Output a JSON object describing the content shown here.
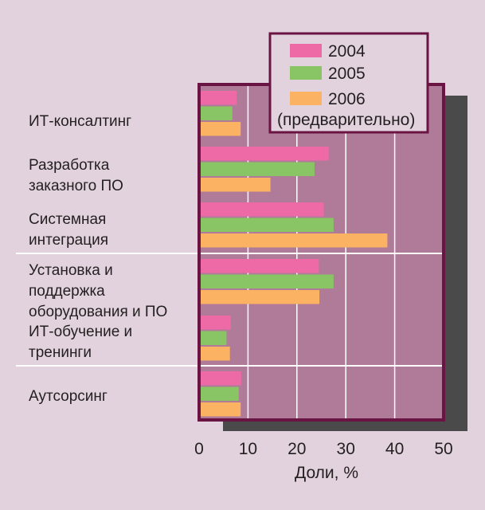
{
  "chart_data": {
    "type": "bar",
    "orientation": "horizontal",
    "title": "",
    "xlabel": "Доли, %",
    "ylabel": "",
    "xlim": [
      0,
      50
    ],
    "x_ticks": [
      0,
      10,
      20,
      30,
      40,
      50
    ],
    "grid": true,
    "legend_position": "top-right",
    "categories": [
      [
        "ИТ-консалтинг"
      ],
      [
        "Разработка",
        "заказного ПО"
      ],
      [
        "Системная",
        "интеграция"
      ],
      [
        "Установка и",
        "поддержка",
        "оборудования и ПО"
      ],
      [
        "ИТ-обучение и",
        "тренинги"
      ],
      [
        "Аутсорсинг"
      ]
    ],
    "series": [
      {
        "name": "2004",
        "color": "#ee6aa7",
        "values": [
          7.7,
          26.5,
          25.5,
          24.5,
          6.5,
          8.6
        ]
      },
      {
        "name": "2005",
        "color": "#8ac565",
        "values": [
          6.8,
          23.6,
          27.5,
          27.5,
          5.6,
          8.1
        ]
      },
      {
        "name": "2006",
        "color": "#fbb263",
        "legend_lines": [
          "2006",
          "(предварительно)"
        ],
        "values": [
          8.5,
          14.6,
          38.5,
          24.6,
          6.3,
          8.5
        ]
      }
    ],
    "colors": {
      "page_background": "#e2d2dd",
      "plot_background": "#b07a99",
      "frame": "#6a1444",
      "shadow": "#4a4a4a",
      "grid": "#ffffff"
    }
  }
}
